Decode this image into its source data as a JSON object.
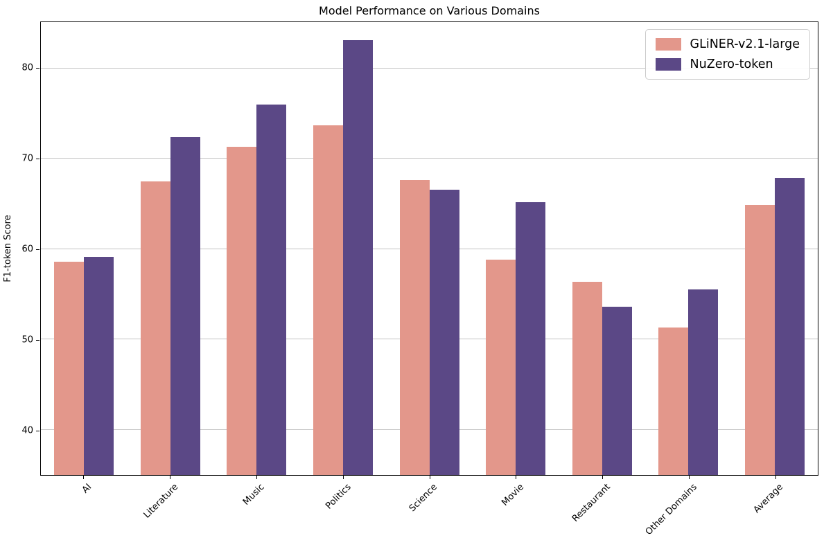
{
  "title": "Model Performance on Various Domains",
  "chart_data": {
    "type": "bar",
    "title": "Model Performance on Various Domains",
    "xlabel": "",
    "ylabel": "F1-token Score",
    "categories": [
      "AI",
      "Literature",
      "Music",
      "Politics",
      "Science",
      "Movie",
      "Restaurant",
      "Other Domains",
      "Average"
    ],
    "series": [
      {
        "name": "GLiNER-v2.1-large",
        "color": "#e3978b",
        "values": [
          58.6,
          67.5,
          71.3,
          73.7,
          67.6,
          58.8,
          56.4,
          51.3,
          64.9
        ]
      },
      {
        "name": "NuZero-token",
        "color": "#5b4886",
        "values": [
          59.1,
          72.4,
          76.0,
          83.1,
          66.6,
          65.2,
          53.6,
          55.5,
          67.9
        ]
      }
    ],
    "ylim": [
      35,
      85.1
    ],
    "yticks": [
      40,
      50,
      60,
      70,
      80
    ],
    "grid": "horizontal",
    "legend_position": "upper right",
    "x_tick_rotation_deg": 45
  }
}
